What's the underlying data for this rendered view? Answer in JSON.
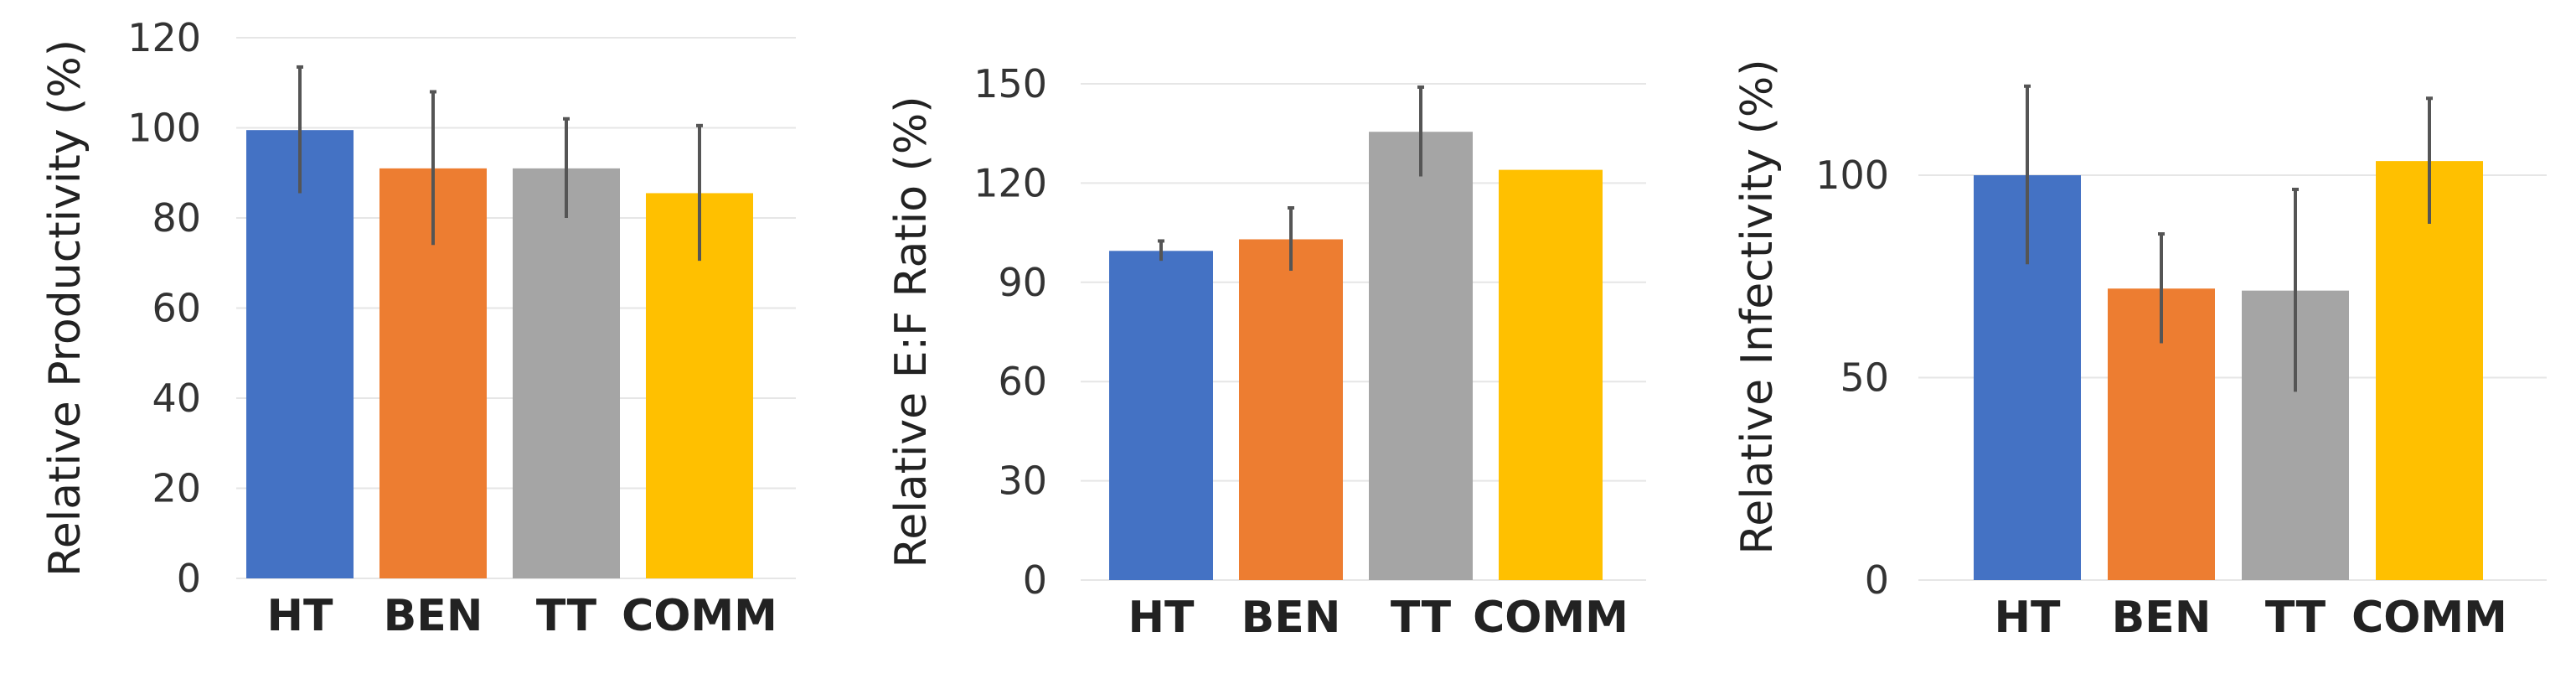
{
  "chart_data": [
    {
      "type": "bar",
      "title": "",
      "xlabel": "",
      "ylabel": "Relative Productivity (%)",
      "ylim": [
        0,
        120
      ],
      "yticks": [
        0,
        20,
        40,
        60,
        80,
        100,
        120
      ],
      "grid": true,
      "categories": [
        "HT",
        "BEN",
        "TT",
        "COMM"
      ],
      "values": [
        99.5,
        91,
        91,
        85.5
      ],
      "errors": [
        14,
        17,
        11,
        15
      ],
      "colors": [
        "#4472C4",
        "#ED7D31",
        "#A5A5A5",
        "#FFC000"
      ]
    },
    {
      "type": "bar",
      "title": "",
      "xlabel": "",
      "ylabel": "Relative E:F Ratio (%)",
      "ylim": [
        0,
        150
      ],
      "yticks": [
        0,
        30,
        60,
        90,
        120,
        150
      ],
      "grid": true,
      "categories": [
        "HT",
        "BEN",
        "TT",
        "COMM"
      ],
      "values": [
        99.5,
        103,
        135.5,
        124
      ],
      "errors": [
        3,
        9.5,
        13.5,
        0
      ],
      "colors": [
        "#4472C4",
        "#ED7D31",
        "#A5A5A5",
        "#FFC000"
      ]
    },
    {
      "type": "bar",
      "title": "",
      "xlabel": "",
      "ylabel": "Relative Infectivity (%)",
      "ylim": [
        0,
        135
      ],
      "yticks": [
        0,
        50,
        100
      ],
      "grid": true,
      "categories": [
        "HT",
        "BEN",
        "TT",
        "COMM"
      ],
      "values": [
        100,
        72,
        71.5,
        103.5
      ],
      "errors": [
        22,
        13.5,
        25,
        15.5
      ],
      "colors": [
        "#4472C4",
        "#ED7D31",
        "#A5A5A5",
        "#FFC000"
      ]
    }
  ]
}
